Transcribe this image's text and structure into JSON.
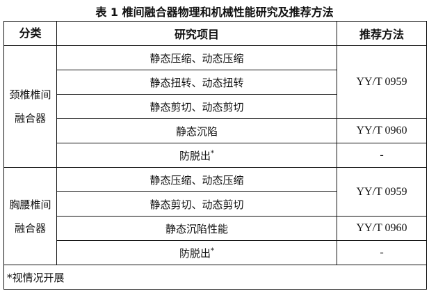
{
  "title": "表 1  椎间融合器物理和机械性能研究及推荐方法",
  "headers": [
    "分类",
    "研究项目",
    "推荐方法"
  ],
  "groups": [
    {
      "category_line1": "颈椎椎间",
      "category_line2": "融合器",
      "items": [
        "静态压缩、动态压缩",
        "静态扭转、动态扭转",
        "静态剪切、动态剪切",
        "静态沉陷",
        "防脱出"
      ],
      "methods": [
        "YY/T 0959",
        "YY/T 0960",
        "-"
      ]
    },
    {
      "category_line1": "胸腰椎间",
      "category_line2": "融合器",
      "items": [
        "静态压缩、动态压缩",
        "静态剪切、动态剪切",
        "静态沉陷性能",
        "防脱出"
      ],
      "methods": [
        "YY/T 0959",
        "YY/T 0960",
        "-"
      ]
    }
  ],
  "asterisk": "*",
  "footnote": "*视情况开展"
}
